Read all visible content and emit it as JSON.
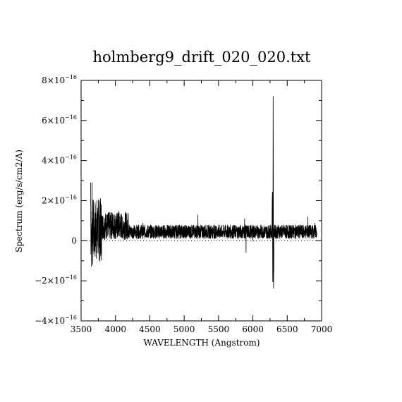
{
  "chart_data": {
    "type": "line",
    "title": "holmberg9_drift_020_020.txt",
    "xlabel": "WAVELENGTH (Angstrom)",
    "ylabel": "Spectrum (erg/s/cm2/A)",
    "xlim": [
      3500,
      7000
    ],
    "ylim": [
      -4e-16,
      8e-16
    ],
    "x_ticks": [
      "3500",
      "4000",
      "4500",
      "5000",
      "5500",
      "6000",
      "6500",
      "7000"
    ],
    "y_ticks": [
      {
        "value": -4e-16,
        "mantissa": "−4",
        "exp": "−16"
      },
      {
        "value": -2e-16,
        "mantissa": "−2",
        "exp": "−16"
      },
      {
        "value": 0,
        "mantissa": "0",
        "exp": ""
      },
      {
        "value": 2e-16,
        "mantissa": "2",
        "exp": "−16"
      },
      {
        "value": 4e-16,
        "mantissa": "4",
        "exp": "−16"
      },
      {
        "value": 6e-16,
        "mantissa": "6",
        "exp": "−16"
      },
      {
        "value": 8e-16,
        "mantissa": "8",
        "exp": "−16"
      }
    ],
    "zero_line": "dotted",
    "grid": false,
    "series": [
      {
        "values_x": [
          3640,
          3650,
          3660,
          3670,
          3680,
          3690,
          3700,
          3720,
          3740,
          3760,
          3780,
          3800,
          3850,
          3900,
          3950,
          4000,
          4050,
          4100,
          4200,
          4300,
          4400,
          4500,
          4600,
          4700,
          4800,
          4900,
          5000,
          5100,
          5200,
          5300,
          5400,
          5500,
          5600,
          5700,
          5800,
          5880,
          5900,
          5950,
          6000,
          6100,
          6200,
          6270,
          6285,
          6290,
          6295,
          6300,
          6310,
          6350,
          6400,
          6500,
          6600,
          6700,
          6800,
          6850,
          6900,
          6930
        ],
        "values_y": [
          2.9e-16,
          -1.3e-16,
          2.9e-16,
          -1.2e-16,
          1.6e-16,
          -5e-17,
          1.2e-16,
          2e-17,
          1.5e-16,
          -6e-17,
          1.9e-16,
          3e-17,
          1.1e-16,
          3e-17,
          1.4e-16,
          5e-17,
          1.5e-16,
          2e-17,
          8e-17,
          3e-17,
          9e-17,
          4e-17,
          7e-17,
          3e-17,
          6e-17,
          2e-17,
          7e-17,
          2e-17,
          1.3e-16,
          2e-17,
          6e-17,
          3e-17,
          7e-17,
          1e-17,
          7e-17,
          1.1e-16,
          -6e-17,
          5e-17,
          0.0,
          6e-17,
          2e-17,
          6e-17,
          2.5e-16,
          -3.1e-16,
          7.2e-16,
          -2.7e-16,
          5e-17,
          2e-17,
          7e-17,
          3e-17,
          6e-17,
          2e-17,
          1.2e-16,
          3e-17,
          9e-17,
          4e-17
        ]
      }
    ]
  }
}
